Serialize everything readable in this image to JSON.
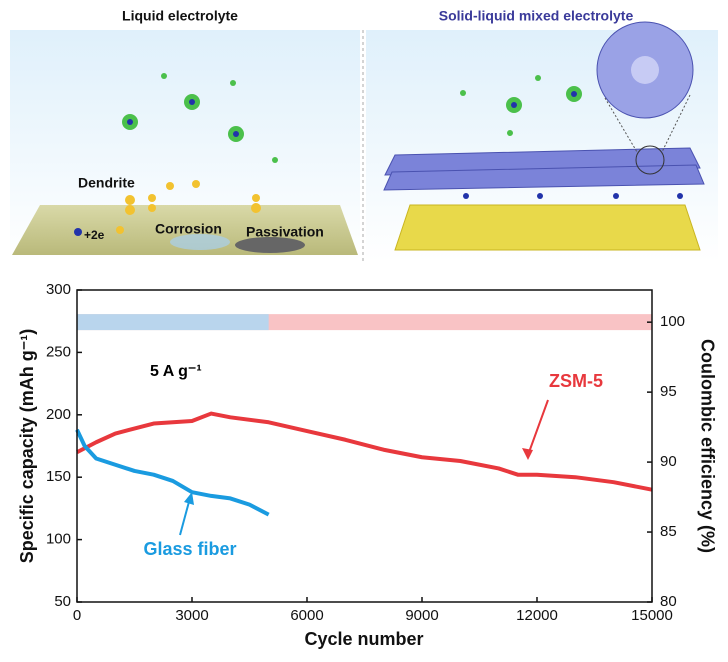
{
  "schematic": {
    "left_title": "Liquid electrolyte",
    "right_title": "Solid-liquid mixed electrolyte",
    "labels": [
      "Dendrite",
      "+2e",
      "Corrosion",
      "Passivation"
    ]
  },
  "chart_data": {
    "type": "line",
    "xlabel": "Cycle number",
    "ylabel": "Specific capacity (mAh g⁻¹)",
    "y2label": "Coulombic efficiency (%)",
    "xlim": [
      0,
      15000
    ],
    "xticks": [
      0,
      3000,
      6000,
      9000,
      12000,
      15000
    ],
    "ylim": [
      50,
      300
    ],
    "yticks": [
      50,
      100,
      150,
      200,
      250,
      300
    ],
    "y2lim": [
      80,
      102.3
    ],
    "y2ticks": [
      80,
      85,
      90,
      95,
      100
    ],
    "annotations": [
      {
        "text": "5 A g⁻¹"
      }
    ],
    "series": [
      {
        "color": "#f7b4b6",
        "axis": "y2",
        "x": [
          0,
          3000,
          6000,
          9000,
          12000,
          15000
        ],
        "values": [
          100,
          100,
          100,
          100,
          100,
          100
        ]
      },
      {
        "color": "#a9d9f6",
        "axis": "y2",
        "x": [
          0,
          2500,
          5000
        ],
        "values": [
          100,
          100,
          100
        ]
      },
      {
        "name": "ZSM-5",
        "color": "#e8383d",
        "x": [
          0,
          500,
          1000,
          2000,
          3000,
          3500,
          4000,
          5000,
          6000,
          7000,
          8000,
          9000,
          10000,
          11000,
          11500,
          12000,
          13000,
          14000,
          15000
        ],
        "values": [
          170,
          178,
          185,
          193,
          195,
          201,
          198,
          194,
          187,
          180,
          172,
          166,
          163,
          157,
          152,
          152,
          150,
          146,
          140
        ]
      },
      {
        "name": "Glass fiber",
        "color": "#1a9be0",
        "x": [
          0,
          200,
          500,
          1000,
          1500,
          2000,
          2500,
          3000,
          3500,
          4000,
          4500,
          5000
        ],
        "values": [
          188,
          175,
          165,
          160,
          155,
          152,
          147,
          138,
          135,
          133,
          128,
          120
        ]
      }
    ]
  }
}
